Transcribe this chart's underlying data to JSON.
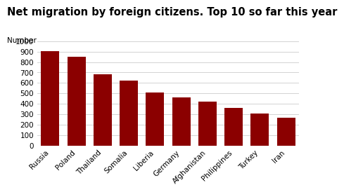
{
  "title": "Net migration by foreign citizens. Top 10 so far this year",
  "ylabel": "Number",
  "categories": [
    "Russia",
    "Poland",
    "Thailand",
    "Somalia",
    "Liberia",
    "Germany",
    "Afghanistan",
    "Philippines",
    "Turkey",
    "Iran"
  ],
  "values": [
    905,
    850,
    685,
    620,
    510,
    465,
    425,
    360,
    305,
    265
  ],
  "bar_color": "#8B0000",
  "ylim": [
    0,
    1000
  ],
  "yticks": [
    0,
    100,
    200,
    300,
    400,
    500,
    600,
    700,
    800,
    900,
    1000
  ],
  "background_color": "#ffffff",
  "grid_color": "#cccccc",
  "title_fontsize": 10.5,
  "label_fontsize": 7.5,
  "tick_fontsize": 7.5
}
